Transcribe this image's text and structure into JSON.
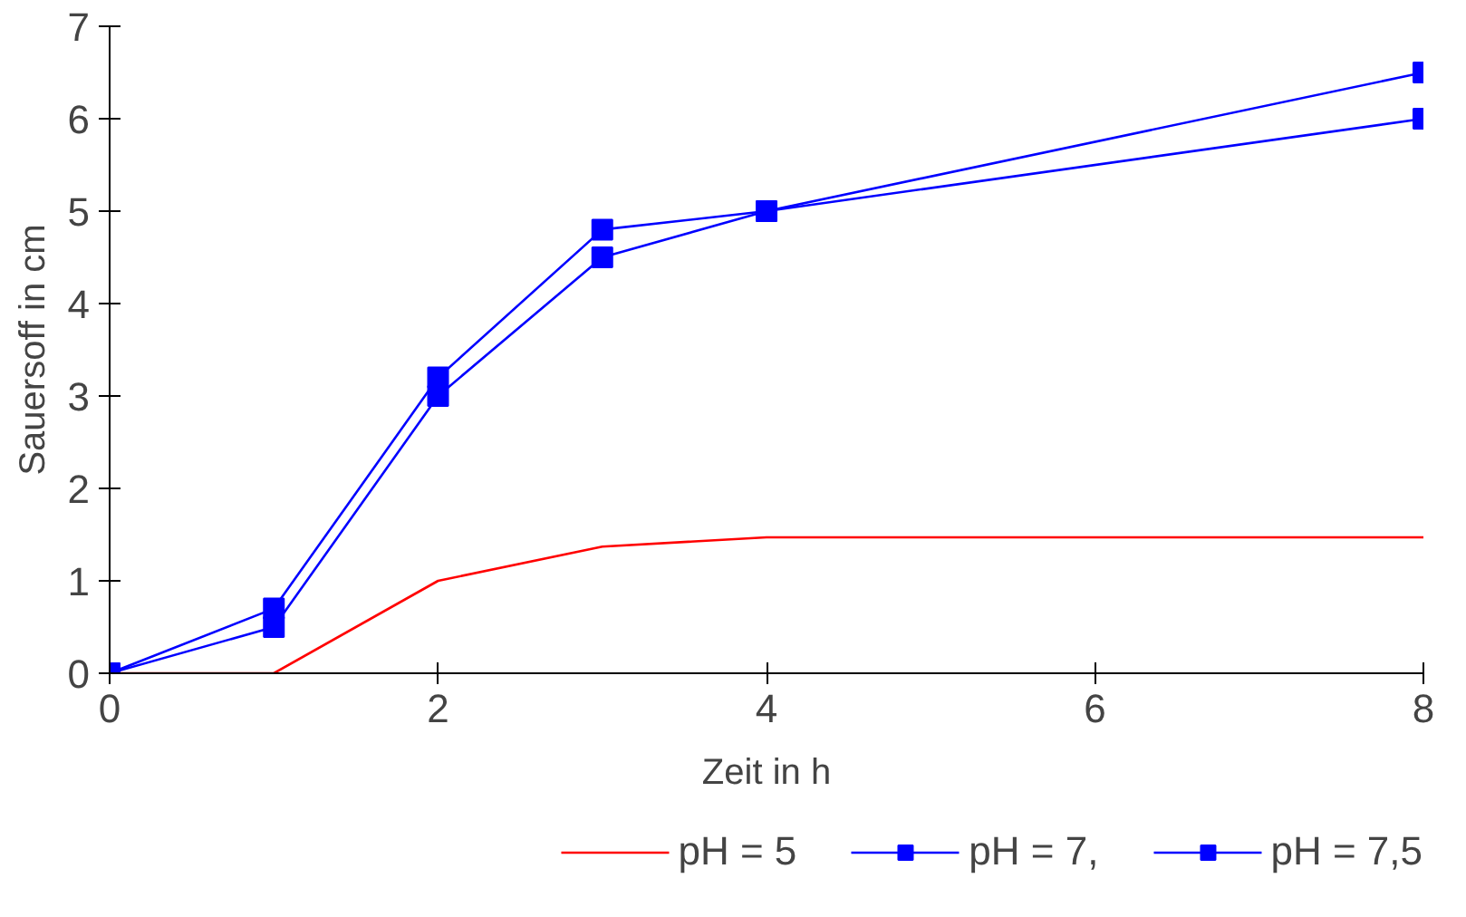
{
  "chart_data": {
    "type": "line",
    "xlabel": "Zeit in h",
    "ylabel": "Sauersoff in cm",
    "x": [
      0,
      1,
      2,
      3,
      4,
      8
    ],
    "series": [
      {
        "name": "pH = 5",
        "color": "#ff0000",
        "marker": "none",
        "values": [
          0,
          0,
          1.0,
          1.37,
          1.47,
          1.47
        ]
      },
      {
        "name": "pH = 7,",
        "color": "#0000ff",
        "marker": "square",
        "values": [
          0,
          0.5,
          3.0,
          4.5,
          5.0,
          6.0
        ]
      },
      {
        "name": "pH = 7,5",
        "color": "#0000ff",
        "marker": "square",
        "values": [
          0,
          0.7,
          3.2,
          4.8,
          5.0,
          6.5
        ]
      }
    ],
    "xlim": [
      0,
      8
    ],
    "ylim": [
      0,
      7
    ],
    "xticks": [
      0,
      2,
      4,
      6,
      8
    ],
    "yticks": [
      0,
      1,
      2,
      3,
      4,
      5,
      6,
      7
    ],
    "grid": false,
    "legend": "bottom"
  }
}
